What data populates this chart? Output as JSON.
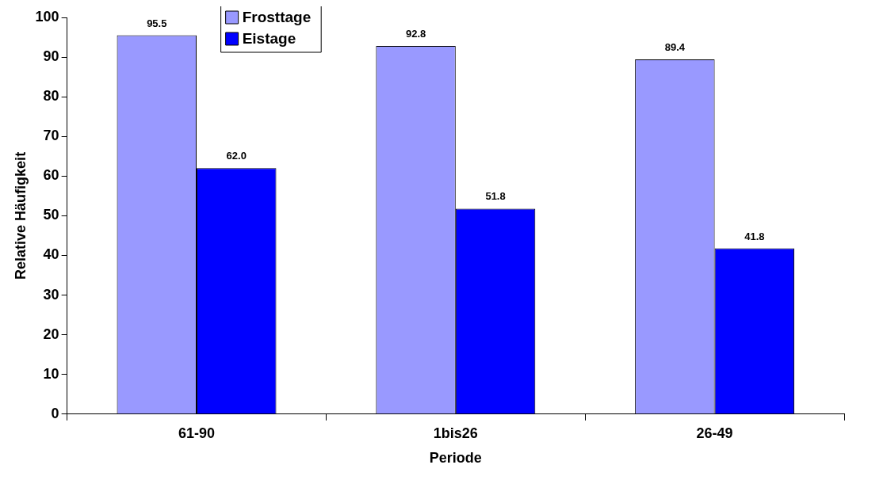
{
  "chart_data": {
    "type": "bar",
    "xlabel": "Periode",
    "ylabel": "Relative Häufigkeit",
    "categories": [
      "61-90",
      "1bis26",
      "26-49"
    ],
    "series": [
      {
        "name": "Frosttage",
        "color": "#9999ff",
        "values": [
          95.5,
          92.8,
          89.4
        ],
        "value_labels": [
          "95.5",
          "92.8",
          "89.4"
        ]
      },
      {
        "name": "Eistage",
        "color": "#0000ff",
        "values": [
          62.0,
          51.8,
          41.8
        ],
        "value_labels": [
          "62.0",
          "51.8",
          "41.8"
        ]
      }
    ],
    "ylim": [
      0,
      100
    ],
    "yticks": [
      0,
      10,
      20,
      30,
      40,
      50,
      60,
      70,
      80,
      90,
      100
    ],
    "grid": false,
    "legend": "top left"
  }
}
